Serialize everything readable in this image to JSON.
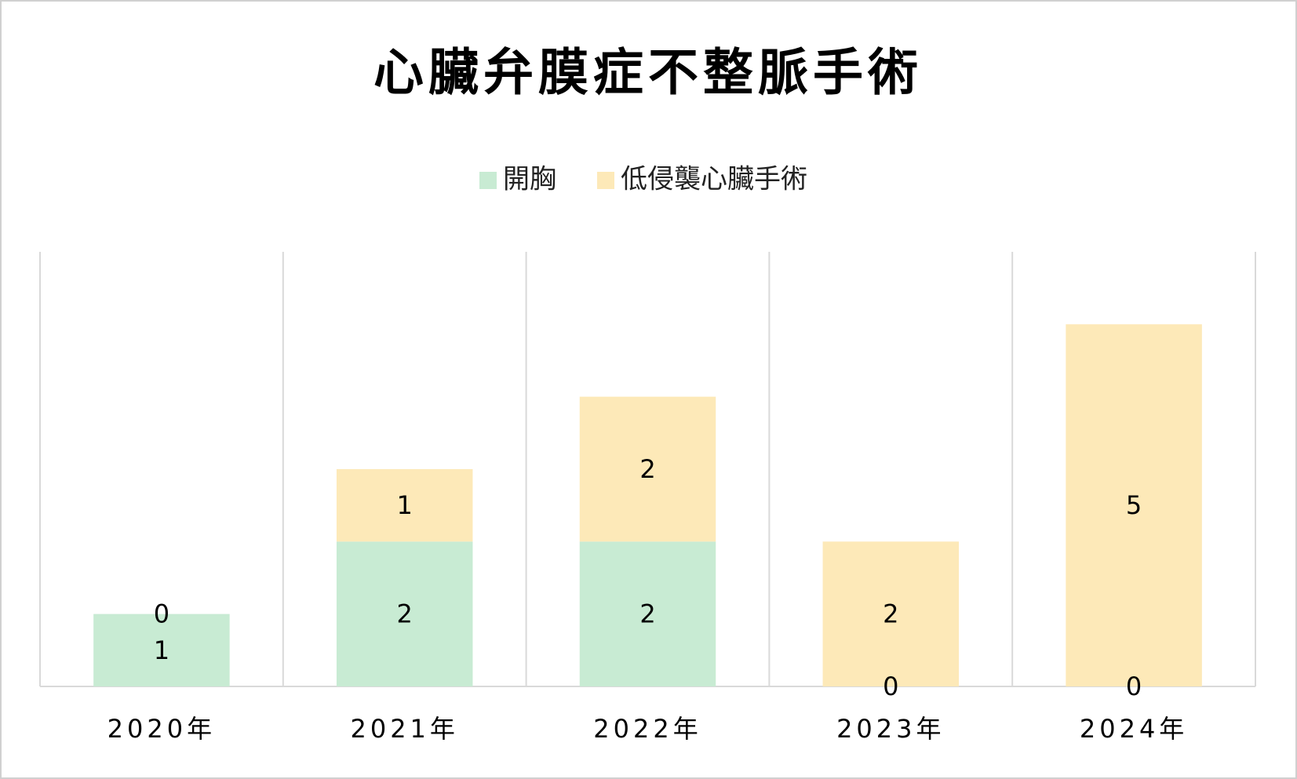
{
  "chart_data": {
    "type": "bar",
    "stacked": true,
    "title": "心臟弁膜症不整脈手術",
    "categories": [
      "2020年",
      "2021年",
      "2022年",
      "2023年",
      "2024年"
    ],
    "series": [
      {
        "name": "開胸",
        "color": "#c8ebd3",
        "values": [
          1,
          2,
          2,
          0,
          0
        ]
      },
      {
        "name": "低侵襲心臟手術",
        "color": "#fde9b8",
        "values": [
          0,
          1,
          2,
          2,
          5
        ]
      }
    ],
    "ylim": [
      0,
      6
    ],
    "legend": "top"
  }
}
